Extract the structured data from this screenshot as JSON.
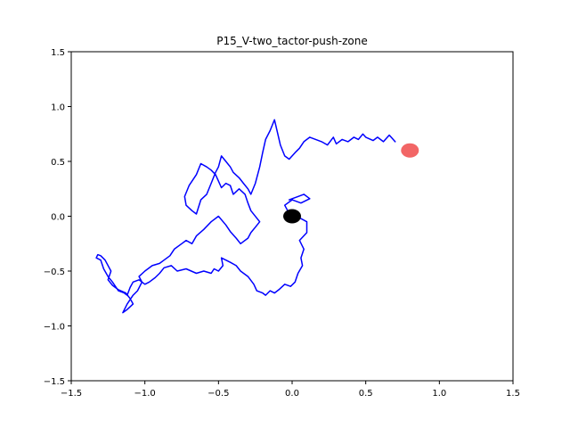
{
  "chart_data": {
    "type": "line",
    "title": "P15_V-two_tactor-push-zone",
    "xlabel": "",
    "ylabel": "",
    "xlim": [
      -1.5,
      1.5
    ],
    "ylim": [
      -1.5,
      1.5
    ],
    "xticks": [
      -1.5,
      -1.0,
      -0.5,
      0.0,
      0.5,
      1.0,
      1.5
    ],
    "yticks": [
      -1.5,
      -1.0,
      -0.5,
      0.0,
      0.5,
      1.0,
      1.5
    ],
    "xtick_labels": [
      "−1.5",
      "−1.0",
      "−0.5",
      "0.0",
      "0.5",
      "1.0",
      "1.5"
    ],
    "ytick_labels": [
      "−1.5",
      "−1.0",
      "−0.5",
      "0.0",
      "0.5",
      "1.0",
      "1.5"
    ],
    "grid": false,
    "series": [
      {
        "color": "#0000ff",
        "x": [
          -0.02,
          0.04,
          0.08,
          0.12,
          0.06,
          0.0,
          -0.05,
          -0.03,
          0.03,
          0.1,
          0.1,
          0.05,
          0.08,
          0.06,
          0.07,
          0.04,
          0.02,
          -0.01,
          -0.05,
          -0.09,
          -0.12,
          -0.15,
          -0.18,
          -0.2,
          -0.24,
          -0.26,
          -0.3,
          -0.35,
          -0.38,
          -0.42,
          -0.45,
          -0.48,
          -0.47,
          -0.5,
          -0.53,
          -0.55,
          -0.6,
          -0.65,
          -0.72,
          -0.78,
          -0.82,
          -0.87,
          -0.9,
          -0.93,
          -0.97,
          -1.0,
          -1.04,
          -1.08,
          -1.1,
          -1.12,
          -1.14,
          -1.18,
          -1.22,
          -1.25,
          -1.28,
          -1.3,
          -1.33,
          -1.32,
          -1.3,
          -1.27,
          -1.23,
          -1.25,
          -1.22,
          -1.18,
          -1.13,
          -1.1,
          -1.08,
          -1.12,
          -1.15,
          -1.12,
          -1.08,
          -1.05,
          -1.02,
          -1.04,
          -1.0,
          -0.95,
          -0.9,
          -0.87,
          -0.83,
          -0.8,
          -0.75,
          -0.72,
          -0.68,
          -0.65,
          -0.6,
          -0.55,
          -0.5,
          -0.45,
          -0.42,
          -0.38,
          -0.35,
          -0.3,
          -0.28,
          -0.25,
          -0.22,
          -0.28,
          -0.3,
          -0.32,
          -0.36,
          -0.4,
          -0.42,
          -0.45,
          -0.48,
          -0.5,
          -0.52,
          -0.55,
          -0.58,
          -0.62,
          -0.65,
          -0.7,
          -0.73,
          -0.72,
          -0.68,
          -0.65,
          -0.62,
          -0.58,
          -0.55,
          -0.52,
          -0.5,
          -0.48,
          -0.45,
          -0.42,
          -0.4,
          -0.36,
          -0.33,
          -0.3,
          -0.28,
          -0.25,
          -0.22,
          -0.2,
          -0.18,
          -0.15,
          -0.12,
          -0.08,
          -0.05,
          -0.02,
          0.02,
          0.05,
          0.08,
          0.12,
          0.16,
          0.2,
          0.24,
          0.28,
          0.3,
          0.34,
          0.38,
          0.42,
          0.45,
          0.48,
          0.5,
          0.55,
          0.58,
          0.62,
          0.66,
          0.7
        ],
        "y": [
          0.15,
          0.18,
          0.2,
          0.16,
          0.12,
          0.15,
          0.1,
          0.05,
          0.0,
          -0.05,
          -0.15,
          -0.22,
          -0.3,
          -0.38,
          -0.45,
          -0.52,
          -0.6,
          -0.64,
          -0.62,
          -0.67,
          -0.7,
          -0.68,
          -0.72,
          -0.7,
          -0.68,
          -0.62,
          -0.55,
          -0.5,
          -0.45,
          -0.42,
          -0.4,
          -0.38,
          -0.45,
          -0.5,
          -0.48,
          -0.52,
          -0.5,
          -0.52,
          -0.48,
          -0.5,
          -0.45,
          -0.47,
          -0.52,
          -0.56,
          -0.6,
          -0.62,
          -0.58,
          -0.6,
          -0.65,
          -0.72,
          -0.7,
          -0.68,
          -0.6,
          -0.55,
          -0.48,
          -0.4,
          -0.38,
          -0.35,
          -0.36,
          -0.4,
          -0.5,
          -0.58,
          -0.63,
          -0.67,
          -0.7,
          -0.75,
          -0.8,
          -0.85,
          -0.88,
          -0.8,
          -0.72,
          -0.68,
          -0.6,
          -0.55,
          -0.5,
          -0.45,
          -0.43,
          -0.4,
          -0.36,
          -0.3,
          -0.25,
          -0.22,
          -0.25,
          -0.18,
          -0.12,
          -0.05,
          0.0,
          -0.08,
          -0.14,
          -0.2,
          -0.25,
          -0.2,
          -0.15,
          -0.1,
          -0.05,
          0.05,
          0.12,
          0.2,
          0.25,
          0.2,
          0.28,
          0.3,
          0.26,
          0.32,
          0.38,
          0.42,
          0.45,
          0.48,
          0.38,
          0.28,
          0.18,
          0.1,
          0.05,
          0.02,
          0.15,
          0.2,
          0.3,
          0.4,
          0.45,
          0.55,
          0.5,
          0.45,
          0.4,
          0.35,
          0.3,
          0.25,
          0.2,
          0.3,
          0.45,
          0.58,
          0.7,
          0.78,
          0.88,
          0.65,
          0.55,
          0.52,
          0.58,
          0.62,
          0.68,
          0.72,
          0.7,
          0.68,
          0.65,
          0.72,
          0.66,
          0.7,
          0.68,
          0.72,
          0.7,
          0.75,
          0.72,
          0.69,
          0.72,
          0.68,
          0.74,
          0.68
        ]
      }
    ],
    "markers": [
      {
        "name": "",
        "x": 0.0,
        "y": 0.0,
        "color": "#000000"
      },
      {
        "name": "",
        "x": 0.8,
        "y": 0.6,
        "color": "#ef4040"
      }
    ]
  }
}
